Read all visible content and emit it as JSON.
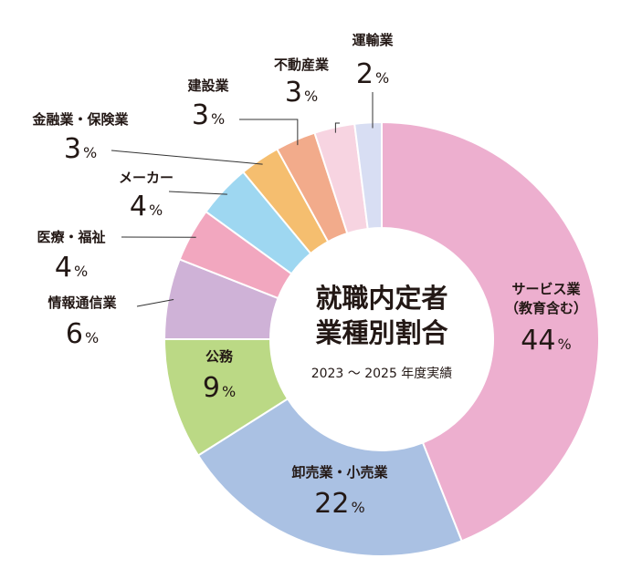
{
  "chart_data": {
    "type": "pie",
    "title_line1": "就職内定者",
    "title_line2": "業種別割合",
    "subtitle": "2023 〜 2025 年度実績",
    "unit": "%",
    "slices": [
      {
        "label": "サービス業",
        "label2": "（教育含む）",
        "value": 44,
        "color": "#EDAFCF"
      },
      {
        "label": "卸売業・小売業",
        "value": 22,
        "color": "#AAC1E3"
      },
      {
        "label": "公務",
        "value": 9,
        "color": "#BBD985"
      },
      {
        "label": "情報通信業",
        "value": 6,
        "color": "#CFB2D7"
      },
      {
        "label": "医療・福祉",
        "value": 4,
        "color": "#F2A7BF"
      },
      {
        "label": "メーカー",
        "value": 4,
        "color": "#9ED7F1"
      },
      {
        "label": "金融業・保険業",
        "value": 3,
        "color": "#F5BE6F"
      },
      {
        "label": "建設業",
        "value": 3,
        "color": "#F2AB8B"
      },
      {
        "label": "不動産業",
        "value": 3,
        "color": "#F7D4E1"
      },
      {
        "label": "運輸業",
        "value": 2,
        "color": "#D8DEF3"
      }
    ]
  }
}
